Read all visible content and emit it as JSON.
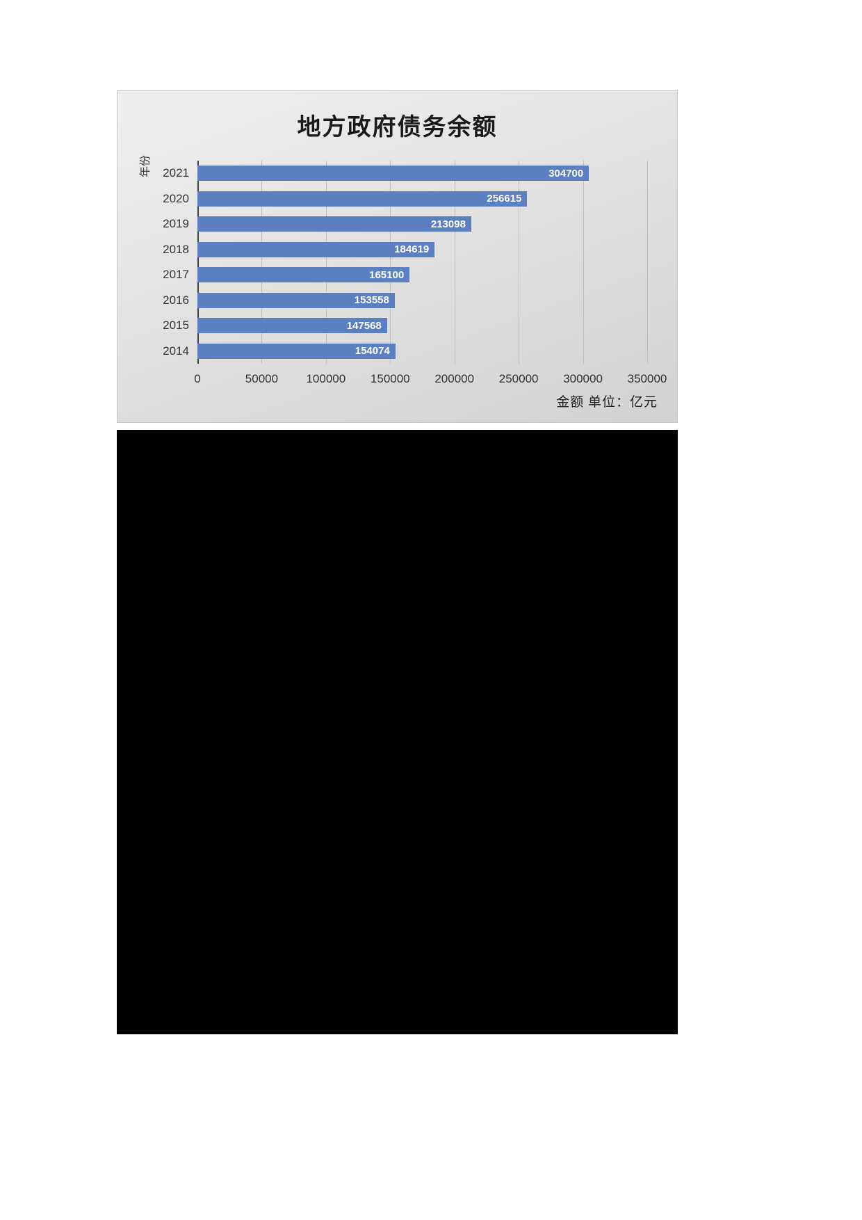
{
  "colors": {
    "bar": "#5b7fc0",
    "bar_value_text": "#ffffff",
    "chart_background": "#e2e2e2",
    "panel": "#000000",
    "gridline": "#bdbdbd",
    "axis_line": "#3f3f3f"
  },
  "chart_data": {
    "type": "bar",
    "orientation": "horizontal",
    "title": "地方政府债务余额",
    "ylabel": "年份",
    "xlabel": "金额  单位：亿元",
    "categories": [
      "2021",
      "2020",
      "2019",
      "2018",
      "2017",
      "2016",
      "2015",
      "2014"
    ],
    "values": [
      304700,
      256615,
      213098,
      184619,
      165100,
      153558,
      147568,
      154074
    ],
    "xlim": [
      0,
      350000
    ],
    "xticks": [
      0,
      50000,
      100000,
      150000,
      200000,
      250000,
      300000,
      350000
    ],
    "grid": true,
    "legend": "none",
    "value_labels": "inside-end"
  }
}
